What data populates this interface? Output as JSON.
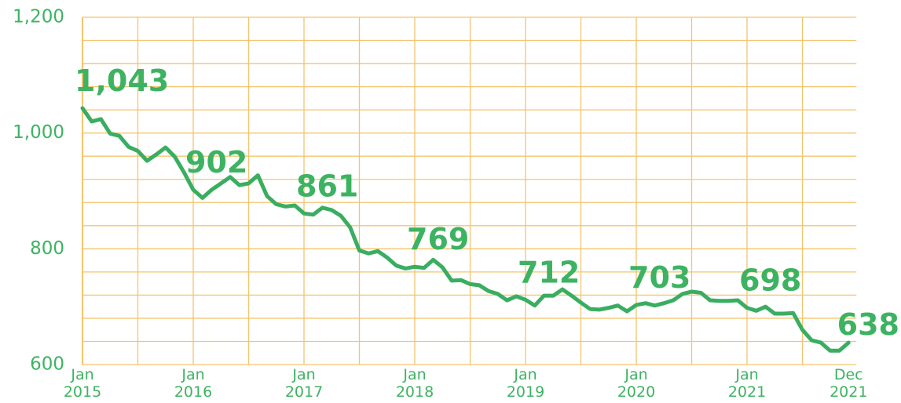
{
  "chart_data": {
    "type": "line",
    "categories": [
      "Jan 2015",
      null,
      null,
      null,
      null,
      null,
      null,
      null,
      null,
      null,
      null,
      null,
      "Jan 2016",
      null,
      null,
      null,
      null,
      null,
      null,
      null,
      null,
      null,
      null,
      null,
      "Jan 2017",
      null,
      null,
      null,
      null,
      null,
      null,
      null,
      null,
      null,
      null,
      null,
      "Jan 2018",
      null,
      null,
      null,
      null,
      null,
      null,
      null,
      null,
      null,
      null,
      null,
      "Jan 2019",
      null,
      null,
      null,
      null,
      null,
      null,
      null,
      null,
      null,
      null,
      null,
      "Jan 2020",
      null,
      null,
      null,
      null,
      null,
      null,
      null,
      null,
      null,
      null,
      null,
      "Jan 2021",
      null,
      null,
      null,
      null,
      null,
      null,
      null,
      null,
      null,
      null,
      "Dec 2021"
    ],
    "values": [
      1043,
      1020,
      1024,
      999,
      995,
      976,
      969,
      952,
      963,
      975,
      959,
      932,
      902,
      888,
      902,
      913,
      924,
      910,
      913,
      927,
      891,
      877,
      873,
      875,
      861,
      859,
      871,
      867,
      857,
      837,
      797,
      792,
      796,
      785,
      771,
      766,
      769,
      767,
      781,
      768,
      745,
      746,
      739,
      737,
      727,
      722,
      711,
      718,
      712,
      702,
      719,
      719,
      730,
      719,
      707,
      696,
      695,
      698,
      702,
      692,
      703,
      706,
      702,
      706,
      711,
      722,
      726,
      724,
      711,
      710,
      710,
      711,
      698,
      693,
      700,
      688,
      688,
      689,
      660,
      642,
      638,
      624,
      624,
      638
    ],
    "value_labels": [
      "1,043",
      null,
      null,
      null,
      null,
      null,
      null,
      null,
      null,
      null,
      null,
      null,
      "902",
      null,
      null,
      null,
      null,
      null,
      null,
      null,
      null,
      null,
      null,
      null,
      "861",
      null,
      null,
      null,
      null,
      null,
      null,
      null,
      null,
      null,
      null,
      null,
      "769",
      null,
      null,
      null,
      null,
      null,
      null,
      null,
      null,
      null,
      null,
      null,
      "712",
      null,
      null,
      null,
      null,
      null,
      null,
      null,
      null,
      null,
      null,
      null,
      "703",
      null,
      null,
      null,
      null,
      null,
      null,
      null,
      null,
      null,
      null,
      null,
      "698",
      null,
      null,
      null,
      null,
      null,
      null,
      null,
      null,
      null,
      null,
      "638"
    ],
    "color": "#3aad60",
    "grid_color": "#f5c46e",
    "ylim": [
      600,
      1200
    ],
    "yticks": [
      600,
      800,
      {
        "value": 1000,
        "label": "1,000"
      },
      {
        "value": 1200,
        "label": "1,200"
      }
    ],
    "minor_yticks": [
      640,
      680,
      720,
      760,
      840,
      880,
      920,
      960,
      1040,
      1080,
      1120,
      1160
    ],
    "grid": true
  }
}
